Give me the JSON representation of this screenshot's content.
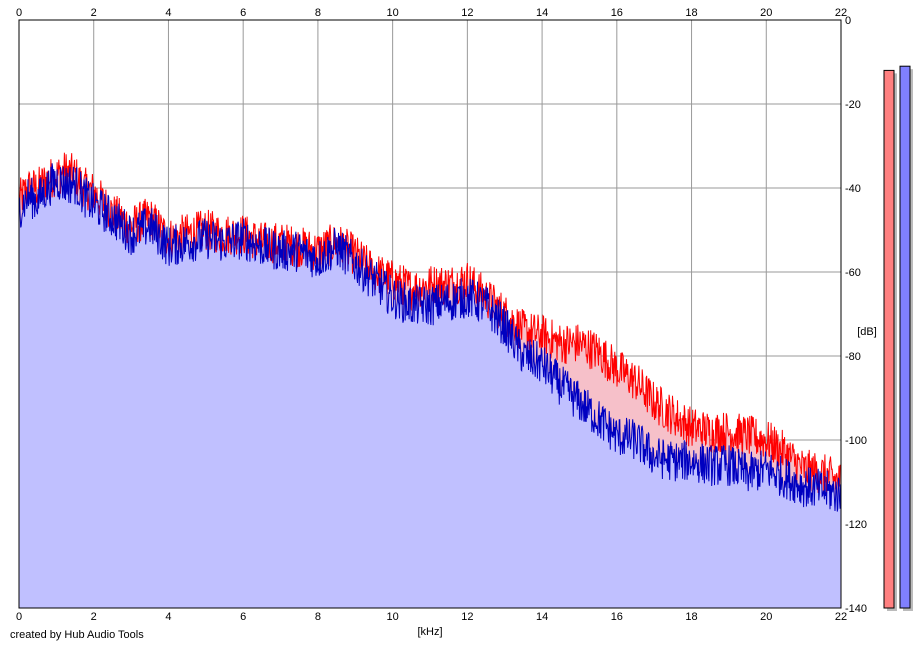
{
  "caption": "created by Hub Audio Tools",
  "chart_data": {
    "type": "area",
    "xlabel": "[kHz]",
    "ylabel": "[dB]",
    "xlim": [
      0,
      22
    ],
    "ylim": [
      -140,
      0
    ],
    "xticks": [
      "0",
      "2",
      "4",
      "6",
      "8",
      "10",
      "12",
      "14",
      "16",
      "18",
      "20",
      "22"
    ],
    "yticks": [
      "0",
      "-20",
      "-40",
      "-60",
      "-80",
      "-100",
      "-120",
      "-140"
    ],
    "grid": true,
    "colors": {
      "background": "#ffffff",
      "grid": "#999999",
      "fill": "#c0c0ff",
      "diff_fill": "#ffc0c0",
      "series_a": "#ff0000",
      "series_b": "#0000c0"
    },
    "series": [
      {
        "color": "#ff0000",
        "x": [
          0,
          0.25,
          0.5,
          0.75,
          1,
          1.25,
          1.5,
          1.75,
          2,
          2.5,
          3,
          3.5,
          4,
          4.5,
          5,
          5.5,
          6,
          6.5,
          7,
          7.5,
          8,
          8.5,
          9,
          9.5,
          10,
          10.5,
          11,
          11.5,
          12,
          12.5,
          13,
          13.5,
          14,
          14.5,
          15,
          15.5,
          16,
          16.5,
          17,
          17.5,
          18,
          18.5,
          19,
          19.5,
          20,
          20.5,
          21,
          21.5,
          22
        ],
        "y": [
          -43,
          -40,
          -40,
          -38,
          -37,
          -36,
          -37,
          -40,
          -41,
          -46,
          -49,
          -47,
          -52,
          -51,
          -50,
          -51,
          -51,
          -53,
          -53,
          -54,
          -55,
          -53,
          -56,
          -60,
          -62,
          -64,
          -63,
          -63,
          -62,
          -66,
          -70,
          -74,
          -75,
          -77,
          -77,
          -79,
          -83,
          -86,
          -91,
          -94,
          -97,
          -98,
          -98,
          -99,
          -100,
          -103,
          -107,
          -108,
          -110
        ]
      },
      {
        "color": "#0000c0",
        "x": [
          0,
          0.25,
          0.5,
          0.75,
          1,
          1.25,
          1.5,
          1.75,
          2,
          2.5,
          3,
          3.5,
          4,
          4.5,
          5,
          5.5,
          6,
          6.5,
          7,
          7.5,
          8,
          8.5,
          9,
          9.5,
          10,
          10.5,
          11,
          11.5,
          12,
          12.5,
          13,
          13.5,
          14,
          14.5,
          15,
          15.5,
          16,
          16.5,
          17,
          17.5,
          18,
          18.5,
          19,
          19.5,
          20,
          20.5,
          21,
          21.5,
          22
        ],
        "y": [
          -45,
          -42,
          -43,
          -40,
          -38,
          -39,
          -39,
          -42,
          -44,
          -47,
          -51,
          -49,
          -54,
          -53,
          -52,
          -53,
          -52,
          -54,
          -55,
          -55,
          -57,
          -54,
          -58,
          -62,
          -66,
          -68,
          -68,
          -67,
          -66,
          -68,
          -73,
          -80,
          -82,
          -87,
          -91,
          -95,
          -99,
          -100,
          -104,
          -105,
          -105,
          -106,
          -106,
          -108,
          -107,
          -109,
          -111,
          -112,
          -113
        ]
      }
    ],
    "level_bars": [
      {
        "color": "#ff8080",
        "top_db": -12
      },
      {
        "color": "#8080ff",
        "top_db": -11
      }
    ]
  }
}
